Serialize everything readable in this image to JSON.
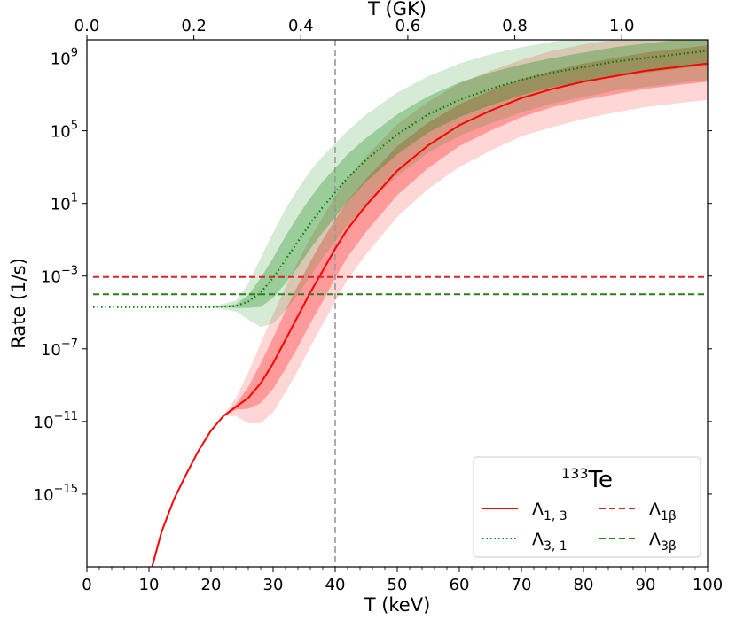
{
  "chart_data": {
    "type": "line",
    "nucleus_mass": "133",
    "nucleus_symbol": "Te",
    "xlabel": "T (keV)",
    "ylabel": "Rate (1/s)",
    "top_xlabel": "T (GK)",
    "xlim": [
      0,
      100
    ],
    "ylim_log10": [
      -19,
      10
    ],
    "x_ticks": [
      "0",
      "10",
      "20",
      "30",
      "40",
      "50",
      "60",
      "70",
      "80",
      "90",
      "100"
    ],
    "top_ticks": [
      {
        "gk": 0.0,
        "label": "0.0"
      },
      {
        "gk": 0.2,
        "label": "0.2"
      },
      {
        "gk": 0.4,
        "label": "0.4"
      },
      {
        "gk": 0.6,
        "label": "0.6"
      },
      {
        "gk": 0.8,
        "label": "0.8"
      },
      {
        "gk": 1.0,
        "label": "1.0"
      }
    ],
    "kev_per_gk": 86.17,
    "y_ticks": [
      {
        "exp": 9,
        "base": "10",
        "sup": "9"
      },
      {
        "exp": 5,
        "base": "10",
        "sup": "5"
      },
      {
        "exp": 1,
        "base": "10",
        "sup": "1"
      },
      {
        "exp": -3,
        "base": "10",
        "sup": "−3"
      },
      {
        "exp": -7,
        "base": "10",
        "sup": "−7"
      },
      {
        "exp": -11,
        "base": "10",
        "sup": "−11"
      },
      {
        "exp": -15,
        "base": "10",
        "sup": "−15"
      }
    ],
    "vline_x": 40,
    "legend": {
      "placement": "lower-right",
      "title_mass": "133",
      "title_symbol": "Te",
      "entries": [
        {
          "key": "l13",
          "base": "Λ",
          "sub": "1, 3"
        },
        {
          "key": "l31",
          "base": "Λ",
          "sub": "3, 1"
        },
        {
          "key": "l1b",
          "base": "Λ",
          "sub": "1β"
        },
        {
          "key": "l3b",
          "base": "Λ",
          "sub": "3β"
        }
      ]
    },
    "series": [
      {
        "key": "l13",
        "name": "Λ1,3",
        "color": "#ff0000",
        "style": "solid",
        "x": [
          10.5,
          12,
          14,
          16,
          18,
          20,
          22,
          24,
          26,
          28,
          30,
          32,
          34,
          36,
          38,
          40,
          42,
          45,
          50,
          55,
          60,
          65,
          70,
          75,
          80,
          85,
          90,
          95,
          100
        ],
        "log10": [
          -19,
          -17.1,
          -15.3,
          -13.9,
          -12.6,
          -11.5,
          -10.7,
          -10.2,
          -9.7,
          -8.9,
          -7.8,
          -6.5,
          -5.2,
          -3.9,
          -2.7,
          -1.5,
          -0.4,
          0.9,
          2.8,
          4.2,
          5.3,
          6.1,
          6.8,
          7.3,
          7.7,
          8.0,
          8.3,
          8.5,
          8.7
        ],
        "band_inner_delta": [
          0,
          0,
          0,
          0,
          0,
          0,
          0,
          0.15,
          0.6,
          1.1,
          1.4,
          1.6,
          1.7,
          1.7,
          1.7,
          1.6,
          1.55,
          1.45,
          1.35,
          1.25,
          1.15,
          1.1,
          1.05,
          1.0,
          1.0,
          1.0,
          1.0,
          1.0,
          1.0
        ],
        "band_outer_delta": [
          0,
          0,
          0,
          0,
          0,
          0,
          0,
          0.5,
          1.4,
          2.2,
          2.7,
          2.9,
          3.0,
          3.0,
          2.95,
          2.9,
          2.8,
          2.7,
          2.55,
          2.4,
          2.3,
          2.2,
          2.1,
          2.1,
          2.05,
          2.0,
          2.0,
          2.0,
          2.0
        ]
      },
      {
        "key": "l31",
        "name": "Λ3,1",
        "color": "#008000",
        "style": "dotted",
        "x": [
          1,
          10,
          20,
          24,
          26,
          28,
          30,
          32,
          34,
          36,
          38,
          40,
          42,
          45,
          50,
          55,
          60,
          65,
          70,
          75,
          80,
          85,
          90,
          95,
          100
        ],
        "log10": [
          -4.7,
          -4.7,
          -4.7,
          -4.65,
          -4.4,
          -3.9,
          -3.1,
          -2.1,
          -1.1,
          -0.1,
          0.8,
          1.6,
          2.4,
          3.4,
          4.8,
          5.9,
          6.7,
          7.3,
          7.8,
          8.2,
          8.5,
          8.8,
          9.0,
          9.2,
          9.4
        ],
        "band_inner_delta": [
          0,
          0,
          0,
          0.1,
          0.35,
          0.8,
          1.1,
          1.3,
          1.4,
          1.4,
          1.4,
          1.35,
          1.3,
          1.2,
          1.1,
          1.0,
          0.95,
          0.9,
          0.85,
          0.8,
          0.8,
          0.8,
          0.8,
          0.8,
          0.8
        ],
        "band_outer_delta": [
          0,
          0,
          0,
          0.3,
          1.0,
          1.9,
          2.5,
          2.8,
          2.9,
          2.9,
          2.8,
          2.7,
          2.6,
          2.5,
          2.3,
          2.1,
          2.0,
          1.9,
          1.8,
          1.7,
          1.65,
          1.6,
          1.6,
          1.6,
          1.6
        ]
      },
      {
        "key": "l1b",
        "name": "Λ1β",
        "color": "#d62728",
        "style": "dashed",
        "x": [
          1,
          100
        ],
        "log10": [
          -3.05,
          -3.05
        ]
      },
      {
        "key": "l3b",
        "name": "Λ3β",
        "color": "#2e7d1e",
        "style": "dashed",
        "x": [
          1,
          100
        ],
        "log10": [
          -4.0,
          -4.0
        ]
      }
    ]
  }
}
